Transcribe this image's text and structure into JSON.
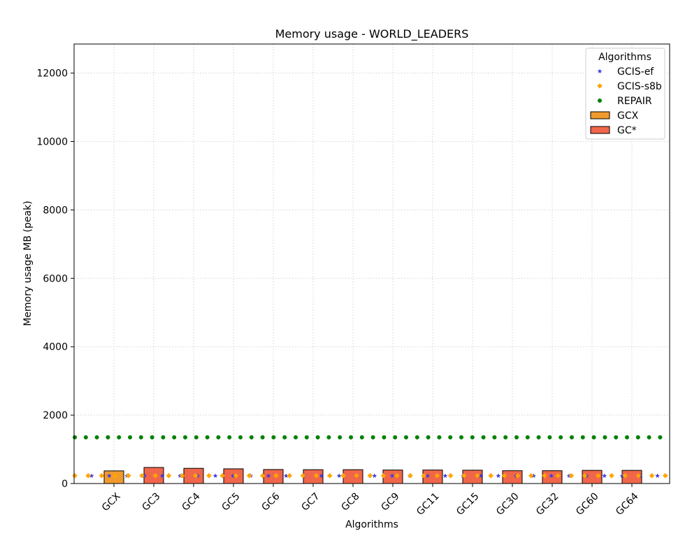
{
  "chart_data": {
    "type": "bar",
    "title": "Memory usage -  WORLD_LEADERS",
    "xlabel": "Algorithms",
    "ylabel": "Memory usage MB (peak)",
    "categories": [
      "GCX",
      "GC3",
      "GC4",
      "GC5",
      "GC6",
      "GC7",
      "GC8",
      "GC9",
      "GC11",
      "GC15",
      "GC30",
      "GC32",
      "GC60",
      "GC64"
    ],
    "bar_values": [
      370,
      470,
      445,
      430,
      410,
      405,
      405,
      395,
      395,
      390,
      375,
      375,
      385,
      385
    ],
    "ylim": [
      0,
      12850
    ],
    "yticks": [
      0,
      2000,
      4000,
      6000,
      8000,
      10000,
      12000
    ],
    "ytick_labels": [
      "0",
      "2000",
      "4000",
      "6000",
      "8000",
      "10000",
      "12000"
    ],
    "grid": true,
    "legend": {
      "title": "Algorithms",
      "placement": "top-right",
      "entries": [
        {
          "label": "GCIS-ef",
          "kind": "star",
          "color": "#3b3bdf"
        },
        {
          "label": "GCIS-s8b",
          "kind": "diamond",
          "color": "#ffa500"
        },
        {
          "label": "REPAIR",
          "kind": "dot",
          "color": "#008000"
        },
        {
          "label": "GCX",
          "kind": "bar",
          "color": "#f09a2e"
        },
        {
          "label": "GC*",
          "kind": "bar",
          "color": "#f0664b"
        }
      ]
    },
    "reference_series": [
      {
        "name": "GCIS-ef",
        "marker": "star",
        "color": "#3b3bdf",
        "value": 225
      },
      {
        "name": "GCIS-s8b",
        "marker": "diamond",
        "color": "#ffa500",
        "value": 230
      },
      {
        "name": "REPAIR",
        "marker": "dot",
        "color": "#008000",
        "value": 1350
      }
    ],
    "bar_colors": {
      "GCX": "#f09a2e",
      "other": "#f0664b"
    }
  }
}
